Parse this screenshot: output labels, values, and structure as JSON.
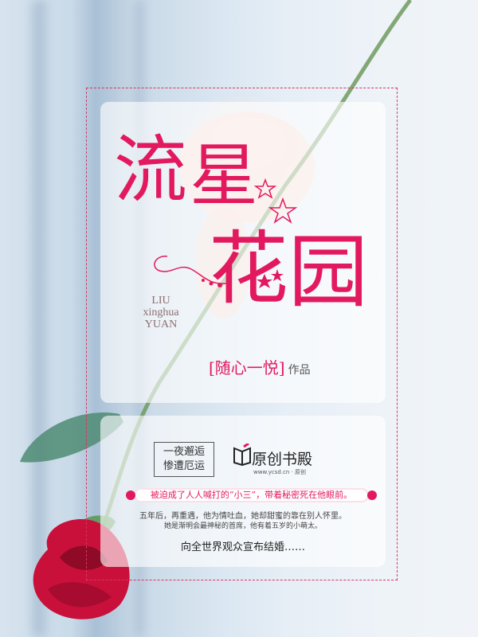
{
  "cover": {
    "title_chars": [
      "流",
      "星",
      "花",
      "园"
    ],
    "pinyin": [
      "LIU",
      "xinghua",
      "YUAN"
    ],
    "author": "[随心一悦]",
    "author_suffix": "作品",
    "tag_line1": "一夜邂逅",
    "tag_line2": "惨遭厄运",
    "logo_text": "原创书殿",
    "logo_url": "www.ycsd.cn · 原创",
    "banner": "被迫成了人人喊打的“小三”，带着秘密死在他眼前。",
    "blurb_line1": "五年后，再重遇，他为情吐血，她却甜蜜的靠在别人怀里。",
    "blurb_line2": "她是渐明会最神秘的首席，他有着五岁的小萌太。",
    "closing": "向全世界观众宣布结婚……",
    "accent_color": "#e2195e"
  }
}
